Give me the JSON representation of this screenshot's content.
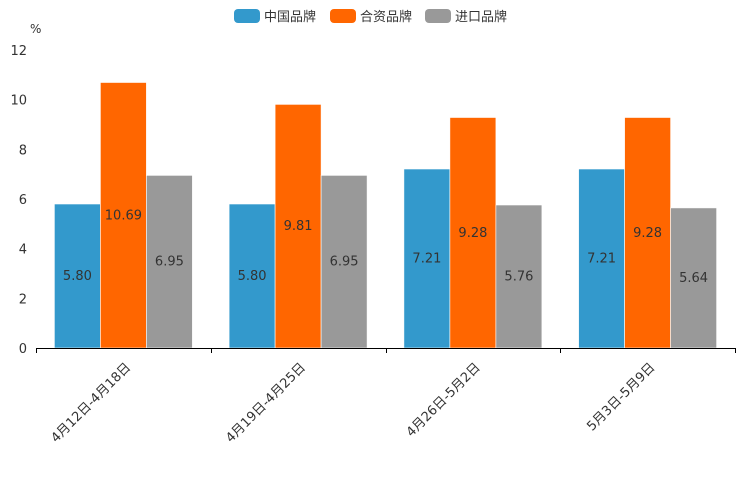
{
  "chart_data": {
    "type": "bar",
    "unit": "%",
    "categories": [
      "4月12日-4月18日",
      "4月19日-4月25日",
      "4月26日-5月2日",
      "5月3日-5月9日"
    ],
    "series": [
      {
        "name": "中国品牌",
        "color": "#3399cc",
        "values": [
          5.8,
          5.8,
          7.21,
          7.21
        ],
        "labels": [
          "5.80",
          "5.80",
          "7.21",
          "7.21"
        ]
      },
      {
        "name": "合资品牌",
        "color": "#ff6600",
        "values": [
          10.69,
          9.81,
          9.28,
          9.28
        ],
        "labels": [
          "10.69",
          "9.81",
          "9.28",
          "9.28"
        ]
      },
      {
        "name": "进口品牌",
        "color": "#999999",
        "values": [
          6.95,
          6.95,
          5.76,
          5.64
        ],
        "labels": [
          "6.95",
          "6.95",
          "5.76",
          "5.64"
        ]
      }
    ],
    "yticks": [
      "0",
      "2",
      "4",
      "6",
      "8",
      "10",
      "12"
    ],
    "ylim": [
      0,
      12
    ],
    "legend_position": "top-center"
  }
}
